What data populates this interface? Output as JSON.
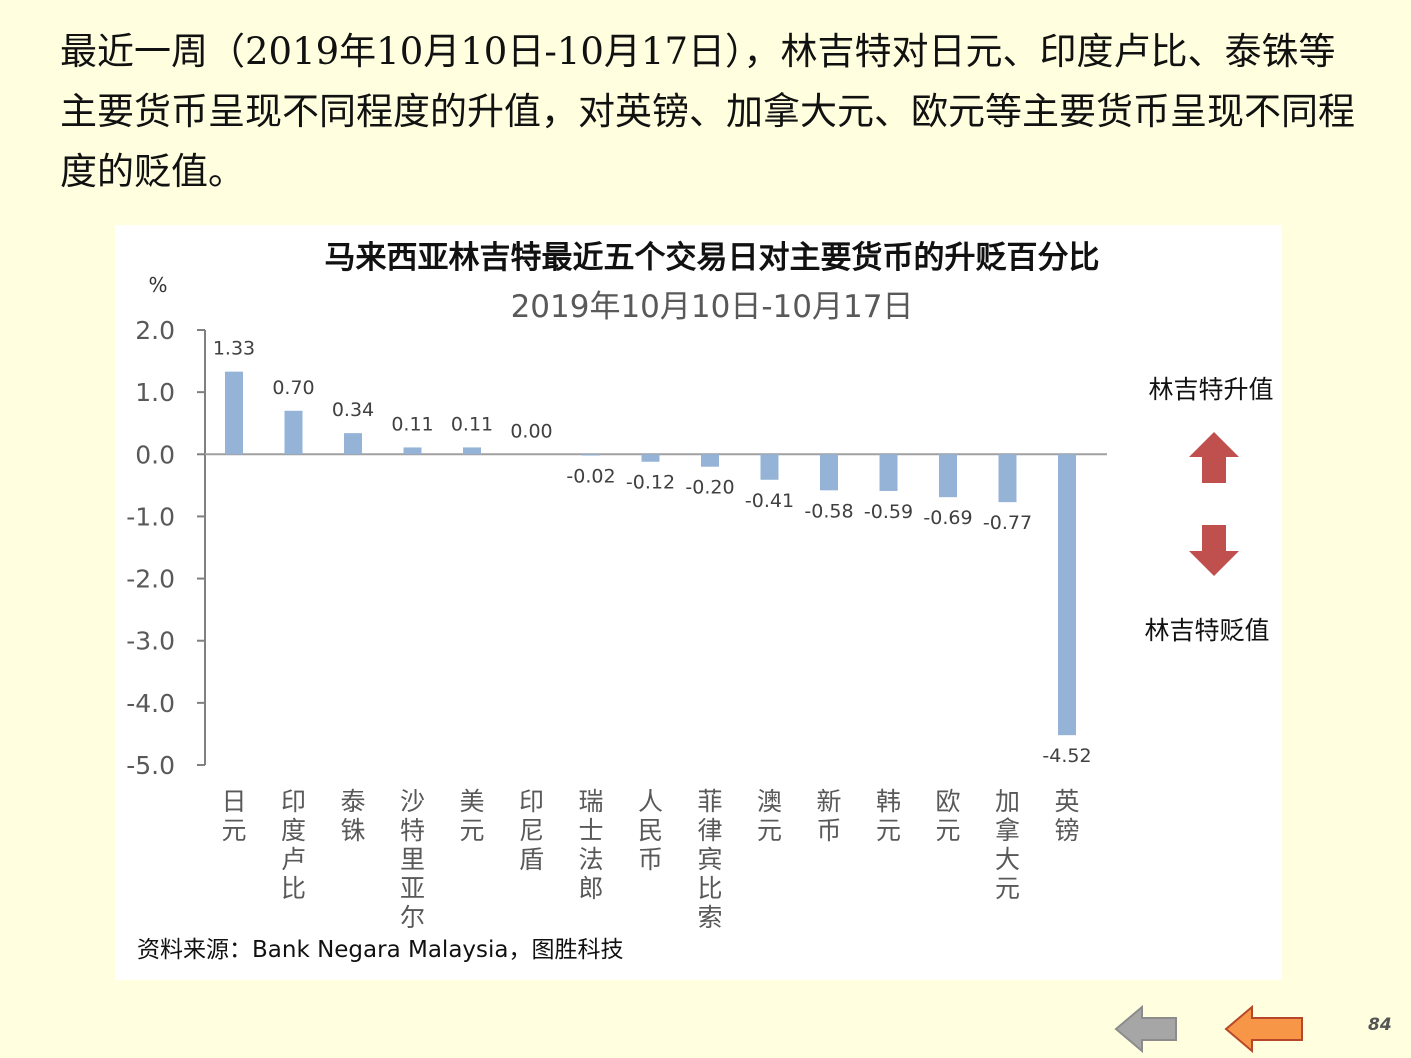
{
  "intro_text": "最近一周（2019年10月10日-10月17日），林吉特对日元、印度卢比、泰铢等主要货币呈现不同程度的升值，对英镑、加拿大元、欧元等主要货币呈现不同程度的贬值。",
  "page_number": "84",
  "colors": {
    "background": "#FFFFE0",
    "bar": "#95B3D7",
    "arrow": "#C0504D",
    "nav_prev": "#A6A6A6",
    "nav_next": "#F79646"
  },
  "icons": {
    "up": "arrow-up-icon",
    "down": "arrow-down-icon",
    "prev": "arrow-left-gray-icon",
    "next": "arrow-left-orange-icon"
  },
  "chart_data": {
    "type": "bar",
    "title": "马来西亚林吉特最近五个交易日对主要货币的升贬百分比",
    "subtitle": "2019年10月10日-10月17日",
    "ylabel": "%",
    "ylim": [
      -5.0,
      2.0
    ],
    "yticks": [
      "2.0",
      "1.0",
      "0.0",
      "-1.0",
      "-2.0",
      "-3.0",
      "-4.0",
      "-5.0"
    ],
    "categories": [
      "日元",
      "印度卢比",
      "泰铢",
      "沙特里亚尔",
      "美元",
      "印尼盾",
      "瑞士法郎",
      "人民币",
      "菲律宾比索",
      "澳元",
      "新币",
      "韩元",
      "欧元",
      "加拿大元",
      "英镑"
    ],
    "values": [
      1.33,
      0.7,
      0.34,
      0.11,
      0.11,
      0.0,
      -0.02,
      -0.12,
      -0.2,
      -0.41,
      -0.58,
      -0.59,
      -0.69,
      -0.77,
      -4.52
    ],
    "value_labels": [
      "1.33",
      "0.70",
      "0.34",
      "0.11",
      "0.11",
      "0.00",
      "-0.02",
      "-0.12",
      "-0.20",
      "-0.41",
      "-0.58",
      "-0.59",
      "-0.69",
      "-0.77",
      "-4.52"
    ],
    "annotations": {
      "up": "林吉特升值",
      "down": "林吉特贬值"
    },
    "source": "资料来源：Bank Negara Malaysia，图胜科技",
    "grid": false,
    "legend": "none"
  }
}
